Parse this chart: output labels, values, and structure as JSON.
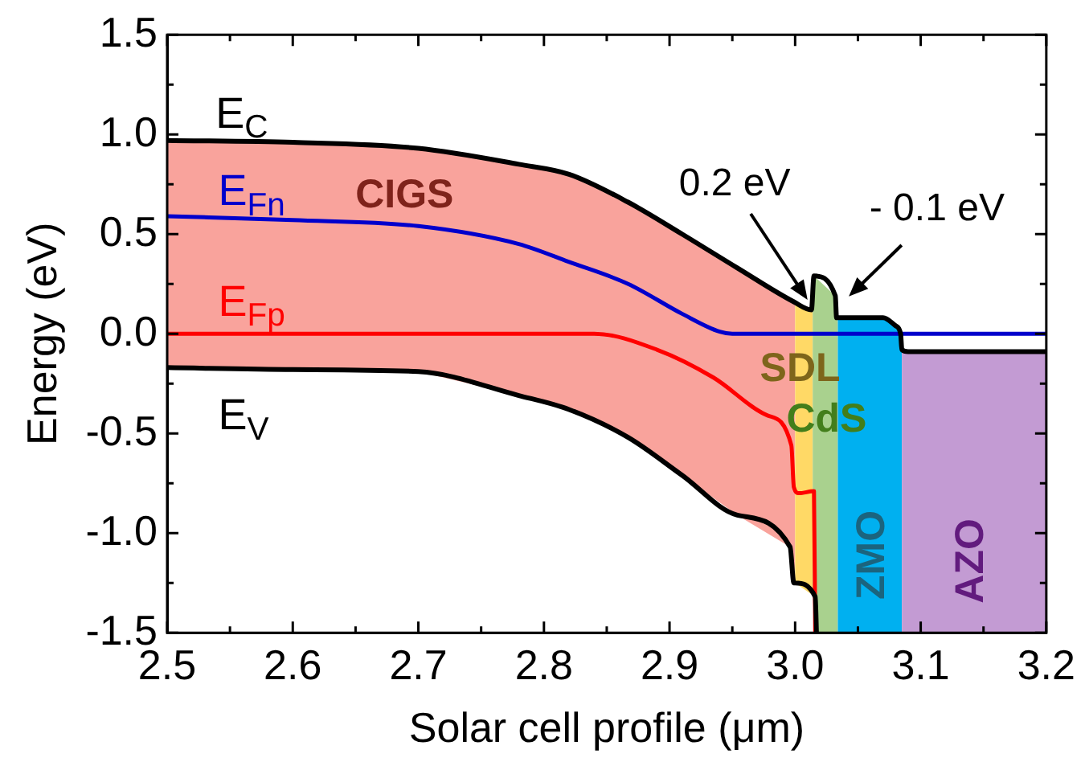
{
  "chart_data": {
    "type": "line",
    "xlabel": "Solar cell profile (μm)",
    "ylabel": "Energy (eV)",
    "xlim": [
      2.5,
      3.2
    ],
    "ylim": [
      -1.5,
      1.5
    ],
    "xticks": [
      {
        "value": 2.5,
        "label": "2.5"
      },
      {
        "value": 2.55,
        "label": null
      },
      {
        "value": 2.6,
        "label": "2.6"
      },
      {
        "value": 2.65,
        "label": null
      },
      {
        "value": 2.7,
        "label": "2.7"
      },
      {
        "value": 2.75,
        "label": null
      },
      {
        "value": 2.8,
        "label": "2.8"
      },
      {
        "value": 2.85,
        "label": null
      },
      {
        "value": 2.9,
        "label": "2.9"
      },
      {
        "value": 2.95,
        "label": null
      },
      {
        "value": 3.0,
        "label": "3.0"
      },
      {
        "value": 3.05,
        "label": null
      },
      {
        "value": 3.1,
        "label": "3.1"
      },
      {
        "value": 3.15,
        "label": null
      },
      {
        "value": 3.2,
        "label": "3.2"
      }
    ],
    "yticks": [
      {
        "value": -1.5,
        "label": "-1.5"
      },
      {
        "value": -1.25,
        "label": null
      },
      {
        "value": -1.0,
        "label": "-1.0"
      },
      {
        "value": -0.75,
        "label": null
      },
      {
        "value": -0.5,
        "label": "-0.5"
      },
      {
        "value": -0.25,
        "label": null
      },
      {
        "value": 0,
        "label": "0.0"
      },
      {
        "value": 0.25,
        "label": null
      },
      {
        "value": 0.5,
        "label": "0.5"
      },
      {
        "value": 0.75,
        "label": null
      },
      {
        "value": 1.0,
        "label": "1.0"
      },
      {
        "value": 1.25,
        "label": null
      },
      {
        "value": 1.5,
        "label": "1.5"
      }
    ],
    "series": [
      {
        "name": "E$_{C}$",
        "color": "#000000",
        "x": [
          2.5,
          2.6,
          2.7,
          2.78,
          2.82,
          2.867,
          2.91,
          2.954,
          2.999,
          3.013,
          3.015,
          3.032,
          3.033,
          3.07,
          3.08,
          3.084,
          3.085,
          3.09,
          3.2
        ],
        "values": [
          0.97,
          0.96,
          0.93,
          0.85,
          0.8,
          0.66,
          0.5,
          0.33,
          0.16,
          0.12,
          0.29,
          0.19,
          0.08,
          0.08,
          0.04,
          0.0,
          -0.08,
          -0.09,
          -0.09
        ]
      },
      {
        "name": "E$_{V}$",
        "color": "#000000",
        "x": [
          2.5,
          2.6,
          2.7,
          2.78,
          2.82,
          2.867,
          2.91,
          2.954,
          2.996,
          2.999,
          3.0,
          3.016,
          3.017
        ],
        "values": [
          -0.17,
          -0.18,
          -0.19,
          -0.31,
          -0.38,
          -0.52,
          -0.71,
          -0.91,
          -1.07,
          -1.25,
          -1.25,
          -1.32,
          -1.5
        ]
      },
      {
        "name": "E$_{Fn}$",
        "color": "#0000cc",
        "x": [
          2.5,
          2.6,
          2.7,
          2.78,
          2.82,
          2.867,
          2.91,
          2.94,
          2.95,
          3.2
        ],
        "values": [
          0.59,
          0.57,
          0.54,
          0.45,
          0.36,
          0.25,
          0.1,
          0.01,
          0.0,
          0.0
        ]
      },
      {
        "name": "E$_{Fp}$",
        "color": "#ff0000",
        "x": [
          2.5,
          2.84,
          2.89,
          2.935,
          2.978,
          2.997,
          2.999,
          3.003,
          3.015,
          3.016
        ],
        "values": [
          0.0,
          0.0,
          -0.08,
          -0.22,
          -0.41,
          -0.56,
          -0.77,
          -0.8,
          -0.79,
          -1.5
        ]
      }
    ],
    "bands": [
      {
        "axis": "x",
        "from": 2.5,
        "to": 3.0,
        "label": "CIGS",
        "color": "#f9a39c"
      },
      {
        "axis": "x",
        "from": 3.0,
        "to": 3.014,
        "label": "SDL",
        "color": "#ffd966"
      },
      {
        "axis": "x",
        "from": 3.014,
        "to": 3.034,
        "label": "CdS",
        "color": "#a9d18e"
      },
      {
        "axis": "x",
        "from": 3.034,
        "to": 3.085,
        "label": "ZMO",
        "color": "#00b0f0"
      },
      {
        "axis": "x",
        "from": 3.085,
        "to": 3.2,
        "label": "AZO",
        "color": "#c39bd3"
      }
    ],
    "annotations": [
      {
        "text": "0.2 eV",
        "x": 3.012,
        "y": 0.15
      },
      {
        "text": "- 0.1 eV",
        "x": 3.04,
        "y": 0.17
      }
    ],
    "legend": "left",
    "marker": "none",
    "line_style": "solid"
  }
}
